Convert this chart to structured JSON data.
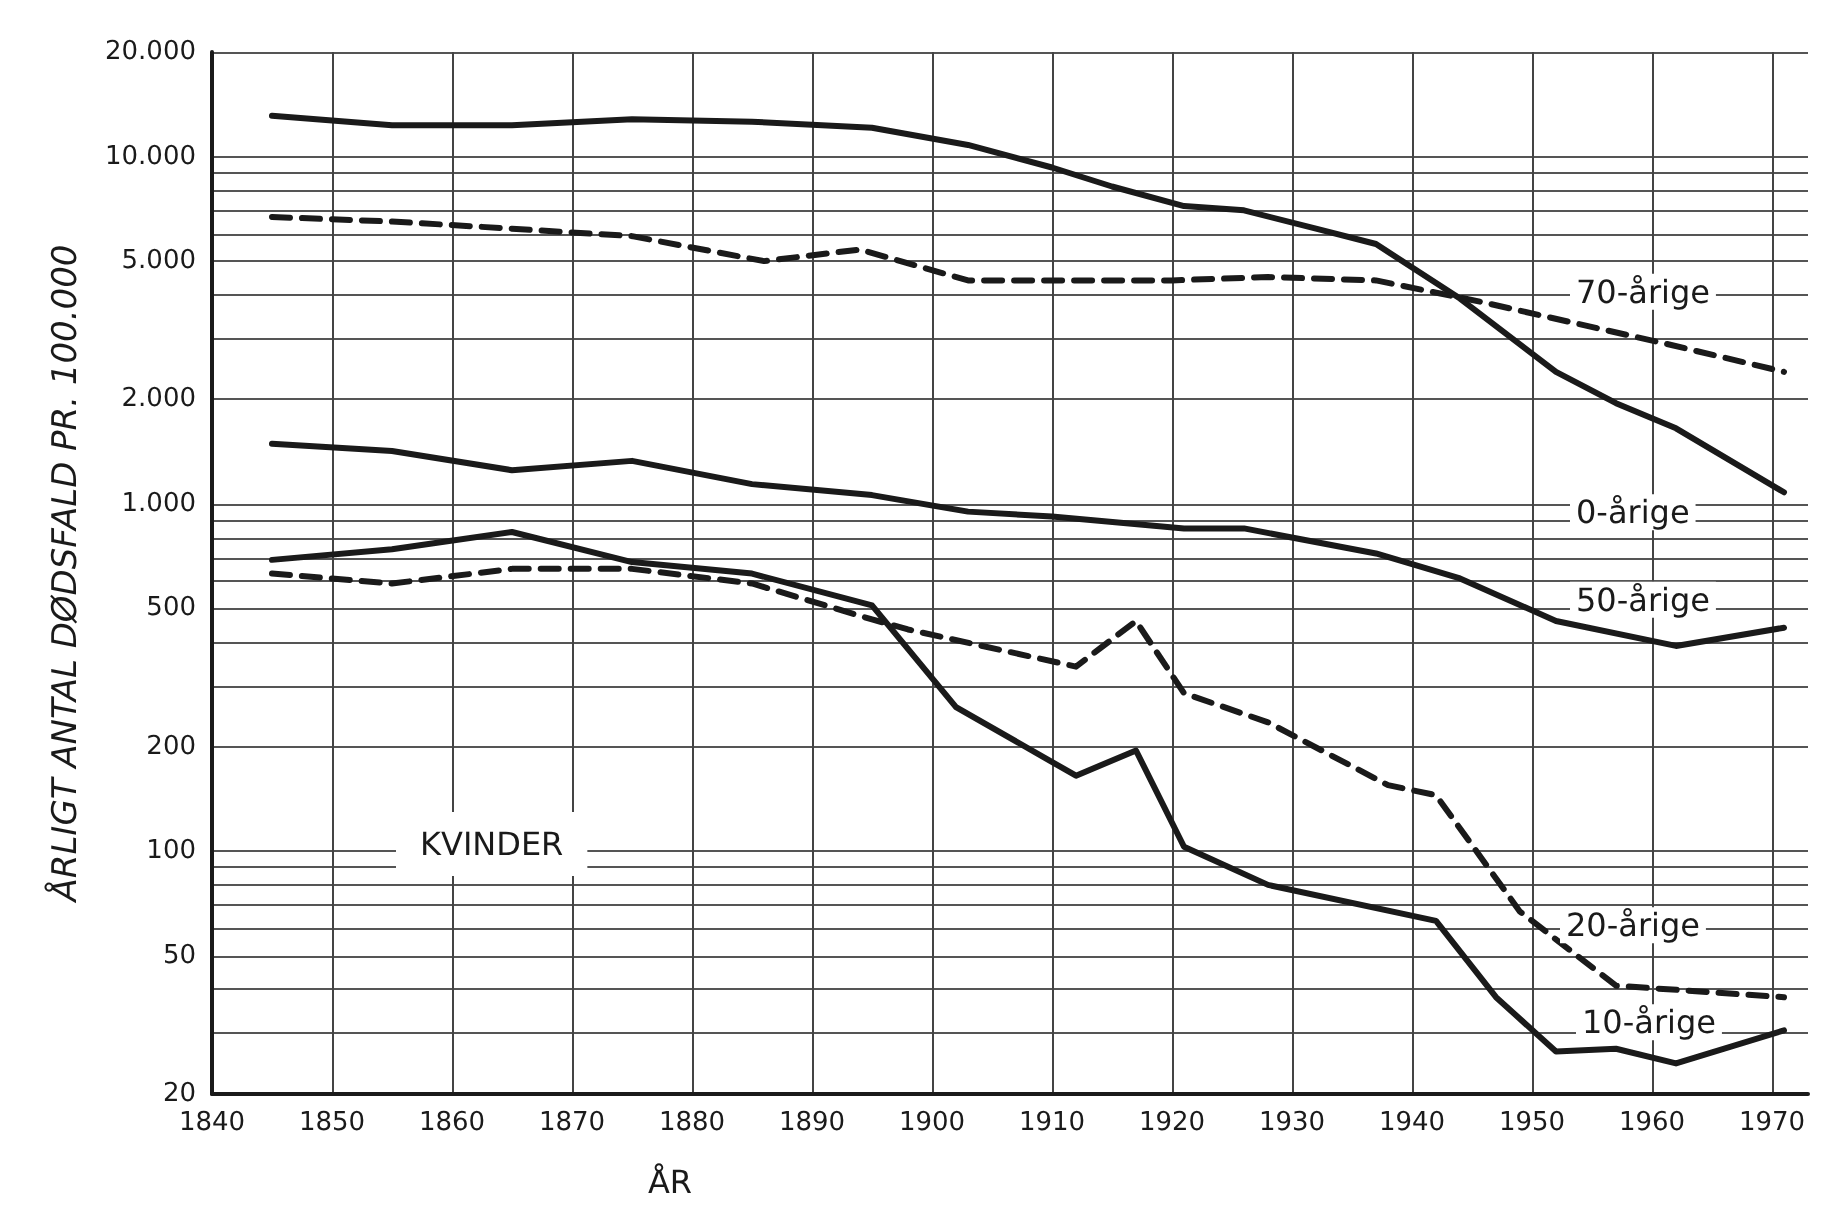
{
  "chart_data": {
    "type": "line",
    "xlabel": "ÅR",
    "ylabel": "ÅRLIGT ANTAL DØDSFALD PR. 100.000",
    "log": "y",
    "grid": true,
    "legend": false,
    "marker": "none",
    "xlim": [
      1840,
      1973
    ],
    "xticks": [
      1840,
      1850,
      1860,
      1870,
      1880,
      1890,
      1900,
      1910,
      1920,
      1930,
      1940,
      1950,
      1960,
      1970
    ],
    "ylim": [
      20,
      20000
    ],
    "yticks": [
      {
        "value": 20,
        "label": "20"
      },
      {
        "value": 30,
        "label": null
      },
      {
        "value": 40,
        "label": null
      },
      {
        "value": 50,
        "label": "50"
      },
      {
        "value": 60,
        "label": null
      },
      {
        "value": 70,
        "label": null
      },
      {
        "value": 80,
        "label": null
      },
      {
        "value": 90,
        "label": null
      },
      {
        "value": 100,
        "label": "100"
      },
      {
        "value": 200,
        "label": "200"
      },
      {
        "value": 300,
        "label": null
      },
      {
        "value": 400,
        "label": null
      },
      {
        "value": 500,
        "label": "500"
      },
      {
        "value": 600,
        "label": null
      },
      {
        "value": 700,
        "label": null
      },
      {
        "value": 800,
        "label": null
      },
      {
        "value": 900,
        "label": null
      },
      {
        "value": 1000,
        "label": "1.000"
      },
      {
        "value": 2000,
        "label": "2.000"
      },
      {
        "value": 3000,
        "label": null
      },
      {
        "value": 4000,
        "label": null
      },
      {
        "value": 5000,
        "label": "5.000"
      },
      {
        "value": 6000,
        "label": null
      },
      {
        "value": 7000,
        "label": null
      },
      {
        "value": 8000,
        "label": null
      },
      {
        "value": 9000,
        "label": null
      },
      {
        "value": 10000,
        "label": "10.000"
      },
      {
        "value": 20000,
        "label": "20.000"
      }
    ],
    "series": [
      {
        "name": "0-årige",
        "color": "#1a1a1a",
        "line_style": "solid",
        "x": [
          1845,
          1855,
          1865,
          1875,
          1885,
          1895,
          1903,
          1910,
          1915,
          1921,
          1926,
          1932,
          1937,
          1944,
          1952,
          1957,
          1962,
          1971
        ],
        "values": [
          13100,
          12300,
          12300,
          12800,
          12600,
          12100,
          10800,
          9300,
          8200,
          7200,
          7000,
          6200,
          5600,
          3900,
          2400,
          1950,
          1650,
          1080
        ]
      },
      {
        "name": "70-årige",
        "color": "#1a1a1a",
        "line_style": "dashed",
        "x": [
          1845,
          1855,
          1865,
          1875,
          1886,
          1894,
          1903,
          1912,
          1920,
          1928,
          1937,
          1946,
          1961,
          1971
        ],
        "values": [
          6700,
          6500,
          6200,
          5900,
          5000,
          5400,
          4400,
          4400,
          4400,
          4500,
          4400,
          3800,
          2900,
          2400
        ]
      },
      {
        "name": "50-årige",
        "color": "#1a1a1a",
        "line_style": "solid",
        "x": [
          1845,
          1855,
          1865,
          1875,
          1885,
          1895,
          1903,
          1910,
          1921,
          1926,
          1937,
          1944,
          1952,
          1962,
          1971
        ],
        "values": [
          1490,
          1420,
          1250,
          1330,
          1140,
          1060,
          950,
          920,
          850,
          850,
          720,
          610,
          460,
          390,
          440
        ]
      },
      {
        "name": "10-årige",
        "color": "#1a1a1a",
        "line_style": "solid",
        "x": [
          1845,
          1855,
          1865,
          1875,
          1885,
          1895,
          1902,
          1912,
          1917,
          1921,
          1928,
          1942,
          1947,
          1952,
          1957,
          1962,
          1971
        ],
        "values": [
          690,
          740,
          830,
          680,
          630,
          510,
          260,
          165,
          195,
          103,
          80,
          63,
          38,
          26.5,
          27,
          24.5,
          30.5
        ]
      },
      {
        "name": "20-årige",
        "color": "#1a1a1a",
        "line_style": "dashed",
        "x": [
          1845,
          1855,
          1865,
          1875,
          1885,
          1895,
          1898,
          1912,
          1917,
          1921,
          1928,
          1938,
          1942,
          1949,
          1957,
          1971
        ],
        "values": [
          630,
          590,
          650,
          650,
          590,
          465,
          435,
          340,
          460,
          285,
          235,
          155,
          145,
          67,
          41,
          38
        ]
      }
    ],
    "annotations": [
      "KVINDER"
    ]
  }
}
